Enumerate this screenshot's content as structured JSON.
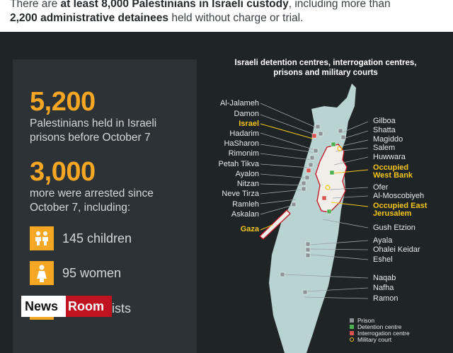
{
  "headline": {
    "line1_pre": "There are ",
    "line1_bold": "at least 8,000 Palestinians in Israeli custody",
    "line1_post": ", including more than",
    "line2_bold": "2,200 administrative detainees",
    "line2_post": " held without charge or trial."
  },
  "stats": {
    "stat1_number": "5,200",
    "stat1_desc_line1": "Palestinians held in Israeli",
    "stat1_desc_line2": "prisons before October 7",
    "stat2_number": "3,000",
    "stat2_desc_line1": "more were arrested since",
    "stat2_desc_line2": "October 7, including:",
    "categories": [
      {
        "icon": "children-icon",
        "label": "145 children"
      },
      {
        "icon": "woman-icon",
        "label": "95 women"
      },
      {
        "icon": "journalist-icon",
        "label": "journalists"
      }
    ]
  },
  "watermark": {
    "part1": "News",
    "part2": "Room"
  },
  "map": {
    "title_line1": "Israeli detention centres, interrogation centres,",
    "title_line2": "prisons and military courts",
    "left_labels": [
      {
        "text": "Al-Jalameh",
        "highlight": false
      },
      {
        "text": "Damon",
        "highlight": false
      },
      {
        "text": "Israel",
        "highlight": true
      },
      {
        "text": "Hadarim",
        "highlight": false
      },
      {
        "text": "HaSharon",
        "highlight": false
      },
      {
        "text": "Rimonim",
        "highlight": false
      },
      {
        "text": "Petah Tikva",
        "highlight": false
      },
      {
        "text": "Ayalon",
        "highlight": false
      },
      {
        "text": "Nitzan",
        "highlight": false
      },
      {
        "text": "Neve Tirza",
        "highlight": false
      },
      {
        "text": "Ramleh",
        "highlight": false
      },
      {
        "text": "Askalan",
        "highlight": false
      },
      {
        "text": "Gaza",
        "highlight": true
      }
    ],
    "right_labels": [
      {
        "text": "Gilboa",
        "highlight": false
      },
      {
        "text": "Shatta",
        "highlight": false
      },
      {
        "text": "Magiddo",
        "highlight": false
      },
      {
        "text": "Salem",
        "highlight": false
      },
      {
        "text": "Huwwara",
        "highlight": false
      },
      {
        "text": "Occupied",
        "highlight": true
      },
      {
        "text": "West Bank",
        "highlight": true
      },
      {
        "text": "Ofer",
        "highlight": false
      },
      {
        "text": "Al-Moscobiyeh",
        "highlight": false
      },
      {
        "text": "Occupied East",
        "highlight": true
      },
      {
        "text": "Jerusalem",
        "highlight": true
      },
      {
        "text": "Gush Etzion",
        "highlight": false
      },
      {
        "text": "Ayala",
        "highlight": false
      },
      {
        "text": "Ohalei Keidar",
        "highlight": false
      },
      {
        "text": "Eshel",
        "highlight": false
      },
      {
        "text": "Naqab",
        "highlight": false
      },
      {
        "text": "Nafha",
        "highlight": false
      },
      {
        "text": "Ramon",
        "highlight": false
      }
    ],
    "legend": [
      {
        "label": "Prison",
        "color": "#8c9499"
      },
      {
        "label": "Detention centre",
        "color": "#4caf50"
      },
      {
        "label": "Interrogation centre",
        "color": "#d9534f"
      },
      {
        "label": "Military court",
        "color": "#f5c518"
      }
    ]
  },
  "colors": {
    "accent": "#f5a623",
    "map_land": "#b9d2d2",
    "territory": "#f2eeea",
    "highlight_text": "#f5c518",
    "background": "#1f2426",
    "panel": "#2c3235"
  }
}
